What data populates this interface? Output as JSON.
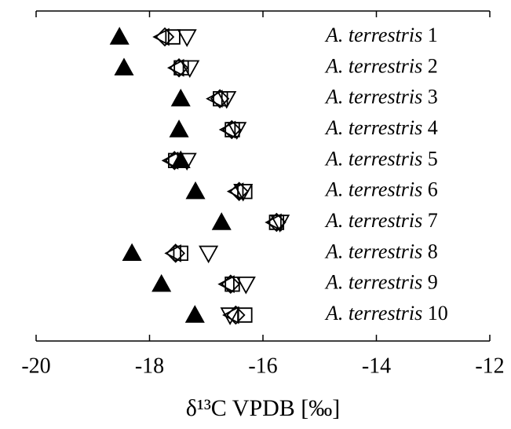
{
  "chart_data": {
    "type": "dot",
    "xlabel": "δ¹³C VPDB [‰]",
    "categories": [
      "A. terrestris 1",
      "A. terrestris 2",
      "A. terrestris 3",
      "A. terrestris 4",
      "A. terrestris 5",
      "A. terrestris 6",
      "A. terrestris 7",
      "A. terrestris 8",
      "A. terrestris 9",
      "A. terrestris 10"
    ],
    "xlim": [
      -20,
      -12
    ],
    "xticks": [
      -20,
      -18,
      -16,
      -14,
      -12
    ],
    "series": [
      {
        "marker": "triangle-up-filled",
        "color": "#000000",
        "values": [
          -18.53,
          -18.45,
          -17.45,
          -17.48,
          -17.45,
          -17.19,
          -16.73,
          -18.31,
          -17.79,
          -17.2
        ]
      },
      {
        "marker": "triangle-left",
        "color": "#000000",
        "values": [
          -17.77,
          -17.51,
          -16.83,
          -16.6,
          -17.61,
          -16.46,
          -15.79,
          -17.56,
          -16.62,
          -16.54
        ]
      },
      {
        "marker": "diamond",
        "color": "#000000",
        "values": [
          -17.73,
          -17.48,
          -16.76,
          -16.55,
          -17.56,
          -16.42,
          -15.76,
          -17.54,
          -16.57,
          -16.48
        ]
      },
      {
        "marker": "square",
        "color": "#000000",
        "values": [
          -17.59,
          -17.44,
          -16.75,
          -16.54,
          -17.54,
          -16.32,
          -15.76,
          -17.45,
          -16.54,
          -16.32
        ]
      },
      {
        "marker": "triangle-down",
        "color": "#000000",
        "values": [
          -17.34,
          -17.29,
          -16.64,
          -16.46,
          -17.34,
          -16.35,
          -15.7,
          -16.96,
          -16.3,
          -16.58
        ]
      }
    ]
  }
}
